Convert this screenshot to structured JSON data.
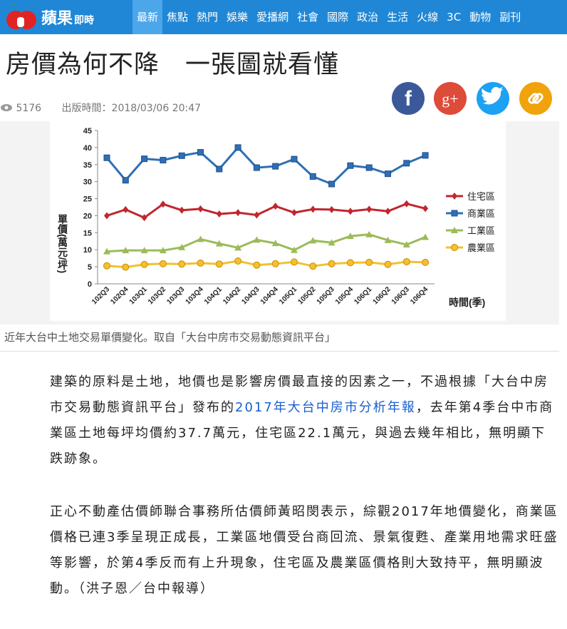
{
  "nav": {
    "logo": "蘋果",
    "logo_sub": "即時",
    "items": [
      "最新",
      "焦點",
      "熱門",
      "娛樂",
      "愛播網",
      "社會",
      "國際",
      "政治",
      "生活",
      "火線",
      "3C",
      "動物",
      "副刊"
    ],
    "active": 0
  },
  "article": {
    "title": "房價為何不降　一張圖就看懂",
    "views": 5176,
    "published": "出版時間：2018/03/06 20:47",
    "share": [
      "f",
      "g+"
    ],
    "caption": "近年大台中土地交易單價變化。取自「大台中房市交易動態資訊平台」",
    "paragraphs": [
      {
        "before": "建築的原料是土地，地價也是影響房價最直接的因素之一，不過根據「大台中房市交易動態資訊平台」發布的",
        "link": "2017年大台中房市分析年報",
        "after": "，去年第4季台中市商業區土地每坪均價約37.7萬元，住宅區22.1萬元，與過去幾年相比，無明顯下跌跡象。"
      },
      {
        "text": "正心不動產估價師聯合事務所估價師黃昭閔表示，綜觀2017年地價變化，商業區價格已連3季呈現正成長，工業區地價受台商回流、景氣復甦、產業用地需求旺盛等影響，於第4季反而有上升現象，住宅區及農業區價格則大致持平，無明顯波動。（洪子恩／台中報導）"
      }
    ]
  },
  "chart_data": {
    "type": "line",
    "y_label": "單價(萬元/坪)",
    "x_label": "時間(季)",
    "categories": [
      "102Q3",
      "102Q4",
      "103Q1",
      "103Q2",
      "103Q3",
      "103Q4",
      "104Q1",
      "104Q2",
      "104Q3",
      "104Q4",
      "105Q1",
      "105Q2",
      "105Q3",
      "105Q4",
      "106Q1",
      "106Q2",
      "106Q3",
      "106Q4"
    ],
    "series": [
      {
        "name": "住宅區",
        "color": "#c0272d",
        "marker": "diamond",
        "values": [
          20,
          21.8,
          19.4,
          23.4,
          21.6,
          22,
          20.5,
          20.9,
          20.2,
          22.8,
          20.9,
          21.9,
          21.8,
          21.3,
          21.9,
          21.3,
          23.5,
          22.1
        ]
      },
      {
        "name": "商業區",
        "color": "#2e6fb5",
        "marker": "square",
        "values": [
          37,
          30.4,
          36.7,
          36.3,
          37.6,
          38.6,
          33.7,
          40,
          34.1,
          34.5,
          36.6,
          31.5,
          29.3,
          34.7,
          34.1,
          32.3,
          35.4,
          37.7
        ]
      },
      {
        "name": "工業區",
        "color": "#9bbb59",
        "marker": "triangle",
        "values": [
          9.5,
          9.8,
          9.8,
          9.8,
          10.7,
          13.1,
          11.8,
          10.6,
          12.9,
          11.9,
          9.9,
          12.7,
          12.1,
          14,
          14.5,
          12.8,
          11.5,
          13.7
        ]
      },
      {
        "name": "農業區",
        "color": "#f2c12e",
        "marker": "circle",
        "values": [
          5.3,
          4.9,
          5.7,
          5.9,
          5.8,
          6.1,
          5.8,
          6.7,
          5.5,
          5.9,
          6.4,
          5.2,
          5.9,
          6.2,
          6.3,
          5.7,
          6.5,
          6.3
        ]
      }
    ],
    "ylim": [
      0,
      45
    ],
    "yticks": [
      0,
      5,
      10,
      15,
      20,
      25,
      30,
      35,
      40,
      45
    ],
    "grid": false
  }
}
